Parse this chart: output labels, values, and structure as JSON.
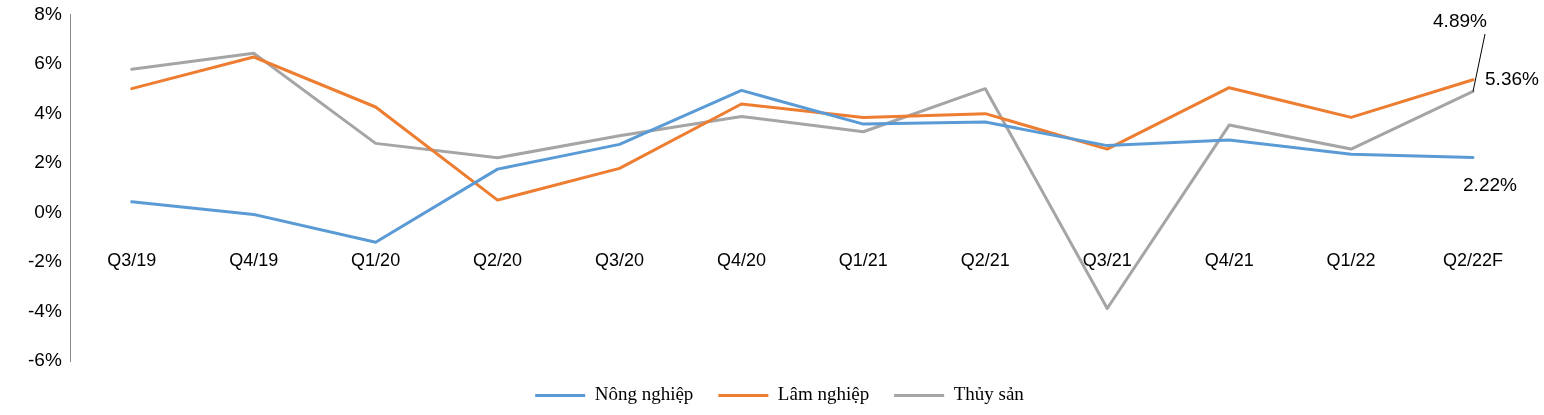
{
  "chart_data": {
    "type": "line",
    "categories": [
      "Q3/19",
      "Q4/19",
      "Q1/20",
      "Q2/20",
      "Q3/20",
      "Q4/20",
      "Q1/21",
      "Q2/21",
      "Q3/21",
      "Q4/21",
      "Q1/22",
      "Q2/22F"
    ],
    "ylim": [
      -6,
      8
    ],
    "yticks": [
      {
        "value": -6,
        "label": "-6%"
      },
      {
        "value": -4,
        "label": "-4%"
      },
      {
        "value": -2,
        "label": "-2%"
      },
      {
        "value": 0,
        "label": "0%"
      },
      {
        "value": 2,
        "label": "2%"
      },
      {
        "value": 4,
        "label": "4%"
      },
      {
        "value": 6,
        "label": "6%"
      },
      {
        "value": 8,
        "label": "8%"
      }
    ],
    "grid": false,
    "legend": "bottom",
    "marker": "none",
    "line_style": "solid",
    "series": [
      {
        "name": "Nông nghiệp",
        "color": "#5b9bd5",
        "values": [
          0.43,
          -0.08,
          -1.2,
          1.75,
          2.75,
          4.93,
          3.57,
          3.65,
          2.7,
          2.93,
          2.35,
          2.22
        ],
        "value_labels": [
          null,
          null,
          null,
          null,
          null,
          null,
          null,
          null,
          null,
          null,
          null,
          "2.22%"
        ]
      },
      {
        "name": "Lâm nghiệp",
        "color": "#ed7d31",
        "values": [
          5.0,
          6.28,
          4.26,
          0.5,
          1.78,
          4.38,
          3.84,
          3.99,
          2.56,
          5.04,
          3.84,
          5.36
        ],
        "value_labels": [
          null,
          null,
          null,
          null,
          null,
          null,
          null,
          null,
          null,
          null,
          null,
          "5.36%"
        ]
      },
      {
        "name": "Thủy sản",
        "color": "#a5a5a5",
        "values": [
          5.78,
          6.43,
          2.79,
          2.21,
          3.1,
          3.88,
          3.26,
          5.0,
          -3.88,
          3.53,
          2.56,
          4.89
        ],
        "value_labels": [
          null,
          null,
          null,
          null,
          null,
          null,
          null,
          null,
          null,
          null,
          null,
          "4.89%"
        ]
      }
    ]
  }
}
